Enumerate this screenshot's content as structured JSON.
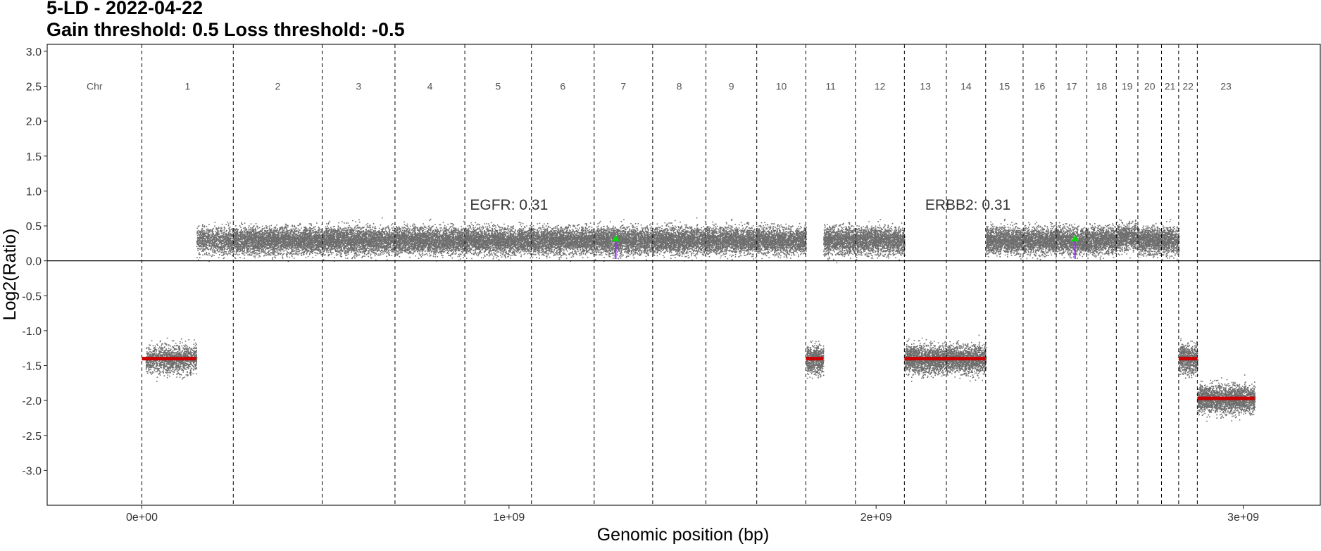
{
  "chart_data": {
    "type": "scatter",
    "title": "5-LD - 2022-04-22",
    "subtitle": "Gain threshold:  0.5  Loss threshold: -0.5",
    "xlabel": "Genomic position (bp)",
    "ylabel": "Log2(Ratio)",
    "xlim": [
      -258000000,
      3210000000
    ],
    "ylim": [
      -3.5,
      3.1
    ],
    "x_ticks": [
      {
        "value": 0,
        "label": "0e+00"
      },
      {
        "value": 1000000000,
        "label": "1e+09"
      },
      {
        "value": 2000000000,
        "label": "2e+09"
      },
      {
        "value": 3000000000,
        "label": "3e+09"
      }
    ],
    "y_ticks": [
      3.0,
      2.5,
      2.0,
      1.5,
      1.0,
      0.5,
      0.0,
      -0.5,
      -1.0,
      -1.5,
      -2.0,
      -2.5,
      -3.0
    ],
    "y_tick_labels": [
      "3.0",
      "2.5",
      "2.0",
      "1.5",
      "1.0",
      "0.5",
      "0.0",
      "-0.5",
      "-1.0",
      "-1.5",
      "-2.0",
      "-2.5",
      "-3.0"
    ],
    "chromosome_header": "Chr",
    "chromosomes": [
      {
        "label": "1",
        "start": 0,
        "end": 248956422,
        "mean": -1.4,
        "called": true,
        "segment_end": 148000000
      },
      {
        "label": "2",
        "start": 248956422,
        "end": 491149951,
        "mean": 0.3,
        "called": false
      },
      {
        "label": "3",
        "start": 491149951,
        "end": 689445510,
        "mean": 0.3,
        "called": false
      },
      {
        "label": "4",
        "start": 689445510,
        "end": 879660065,
        "mean": 0.3,
        "called": false
      },
      {
        "label": "5",
        "start": 879660065,
        "end": 1061198324,
        "mean": 0.3,
        "called": false
      },
      {
        "label": "6",
        "start": 1061198324,
        "end": 1232004303,
        "mean": 0.3,
        "called": false
      },
      {
        "label": "7",
        "start": 1232004303,
        "end": 1391350276,
        "mean": 0.3,
        "called": false
      },
      {
        "label": "8",
        "start": 1391350276,
        "end": 1536488912,
        "mean": 0.3,
        "called": false
      },
      {
        "label": "9",
        "start": 1536488912,
        "end": 1674883629,
        "mean": 0.3,
        "called": false
      },
      {
        "label": "10",
        "start": 1674883629,
        "end": 1808681051,
        "mean": 0.3,
        "called": false
      },
      {
        "label": "11",
        "start": 1808681051,
        "end": 1943767673,
        "mean": -1.4,
        "called": true,
        "segment_end": 1856000000
      },
      {
        "label": "12",
        "start": 1943767673,
        "end": 2077042982,
        "mean": 0.3,
        "called": false
      },
      {
        "label": "13",
        "start": 2077042982,
        "end": 2191407310,
        "mean": -1.4,
        "called": true
      },
      {
        "label": "14",
        "start": 2191407310,
        "end": 2298451028,
        "mean": -1.4,
        "called": true
      },
      {
        "label": "15",
        "start": 2298451028,
        "end": 2400442217,
        "mean": 0.3,
        "called": false
      },
      {
        "label": "16",
        "start": 2400442217,
        "end": 2490780562,
        "mean": 0.3,
        "called": false
      },
      {
        "label": "17",
        "start": 2490780562,
        "end": 2574038003,
        "mean": 0.3,
        "called": false
      },
      {
        "label": "18",
        "start": 2574038003,
        "end": 2654411288,
        "mean": 0.3,
        "called": false
      },
      {
        "label": "19",
        "start": 2654411288,
        "end": 2713028904,
        "mean": 0.35,
        "called": false
      },
      {
        "label": "20",
        "start": 2713028904,
        "end": 2777473071,
        "mean": 0.3,
        "called": false
      },
      {
        "label": "21",
        "start": 2777473071,
        "end": 2824183054,
        "mean": 0.3,
        "called": false
      },
      {
        "label": "22",
        "start": 2824183054,
        "end": 2875001522,
        "mean": -1.4,
        "called": true
      },
      {
        "label": "23",
        "start": 2875001522,
        "end": 3031042417,
        "mean": -1.97,
        "called": true
      }
    ],
    "gene_annotations": [
      {
        "text": "EGFR: 0.31",
        "gene": "EGFR",
        "value": 0.31,
        "x": 1291000000,
        "y": 0.31,
        "label_x": 1000000000,
        "label_y": 0.73
      },
      {
        "text": "ERBB2: 0.31",
        "gene": "ERBB2",
        "value": 0.31,
        "x": 2542000000,
        "y": 0.31,
        "label_x": 2250000000,
        "label_y": 0.73
      }
    ],
    "horizontal_reference": 0,
    "grid": false,
    "colors": {
      "points": "#6e6e6e",
      "segments": "#cc0000",
      "gene_marker": "#00e000",
      "gene_line": "#9b30ff",
      "axis": "#000000",
      "chr_label": "#555555"
    }
  }
}
